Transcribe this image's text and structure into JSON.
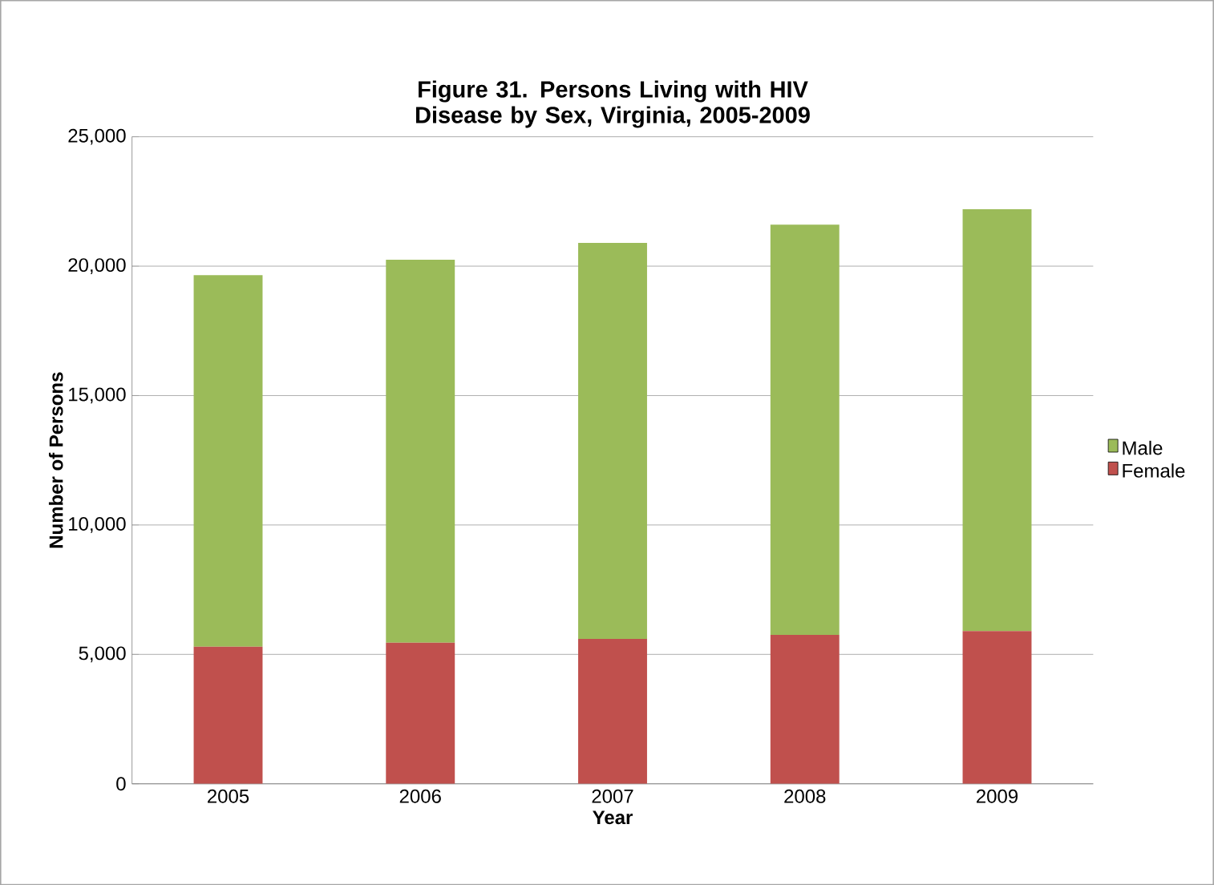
{
  "chart_data": {
    "type": "bar",
    "stacked": true,
    "title": "Figure 31. Persons Living with HIV Disease by Sex, Virginia, 2005-2009",
    "xlabel": "Year",
    "ylabel": "Number of Persons",
    "categories": [
      "2005",
      "2006",
      "2007",
      "2008",
      "2009"
    ],
    "series": [
      {
        "name": "Female",
        "color": "#c0504d",
        "values": [
          5300,
          5450,
          5600,
          5750,
          5900
        ]
      },
      {
        "name": "Male",
        "color": "#9bbb59",
        "values": [
          14350,
          14800,
          15300,
          15850,
          16300
        ]
      }
    ],
    "ylim": [
      0,
      25000
    ],
    "yticks": [
      {
        "value": 0,
        "label": "0"
      },
      {
        "value": 5000,
        "label": "5,000"
      },
      {
        "value": 10000,
        "label": "10,000"
      },
      {
        "value": 15000,
        "label": "15,000"
      },
      {
        "value": 20000,
        "label": "20,000"
      },
      {
        "value": 25000,
        "label": "25,000"
      }
    ],
    "grid": "y",
    "legend": "right"
  }
}
